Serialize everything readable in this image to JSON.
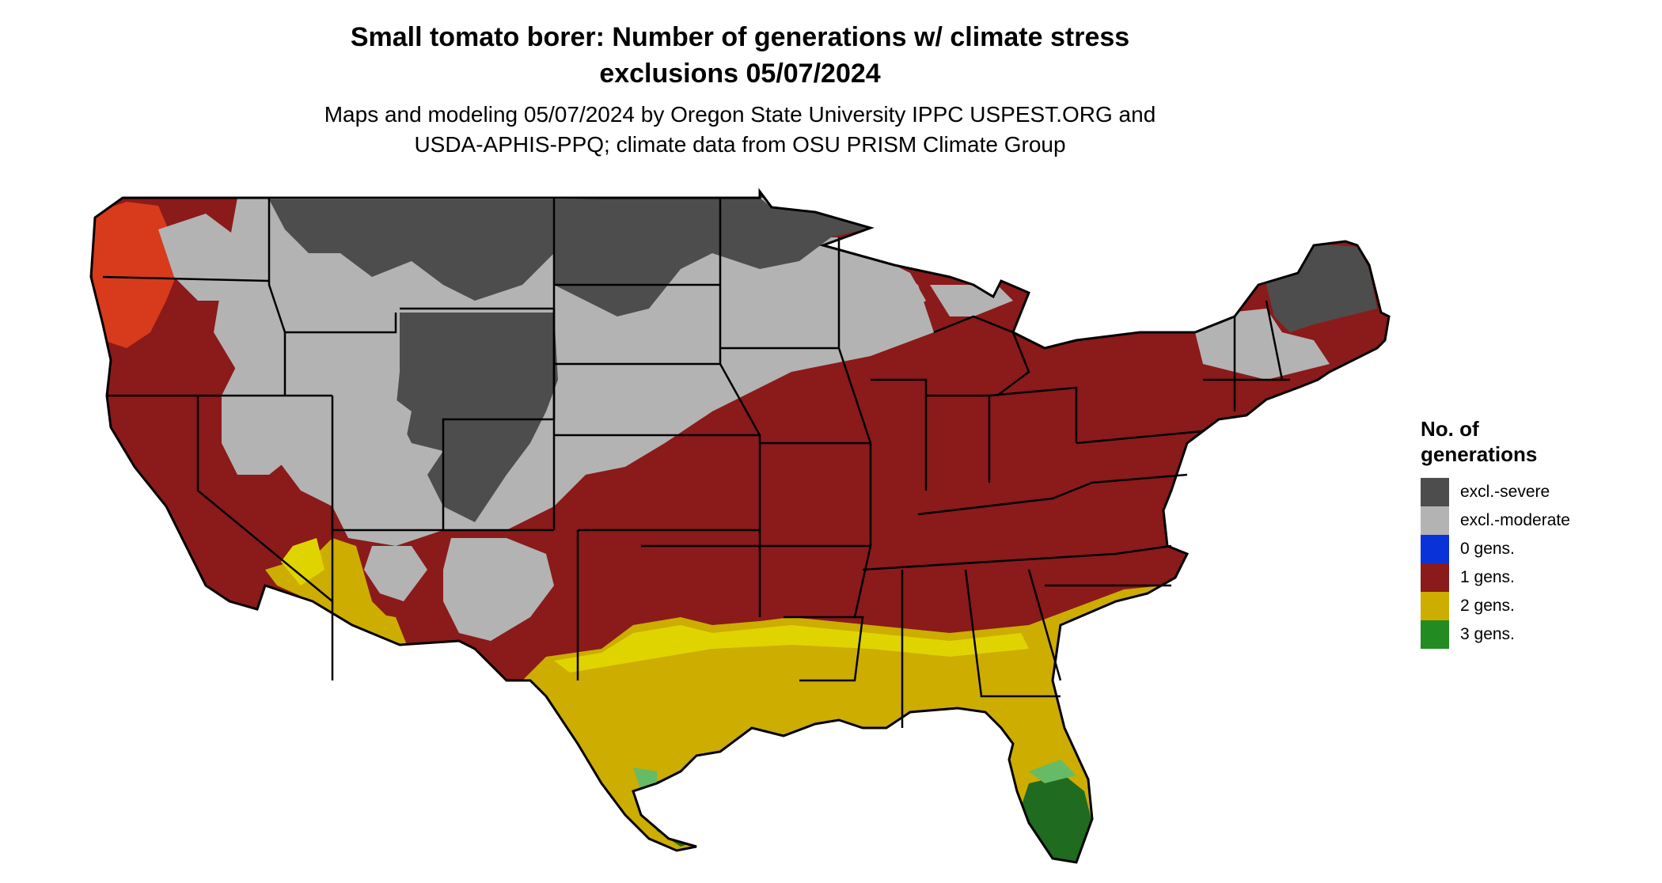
{
  "title_line1": "Small tomato borer: Number of generations w/ climate stress",
  "title_line2": "exclusions 05/07/2024",
  "subtitle_line1": "Maps and modeling 05/07/2024 by Oregon State University IPPC USPEST.ORG and",
  "subtitle_line2": "USDA-APHIS-PPQ; climate data from OSU PRISM Climate Group",
  "legend": {
    "title_line1": "No. of",
    "title_line2": "generations",
    "items": [
      {
        "label": "excl.-severe",
        "color": "#4d4d4d"
      },
      {
        "label": "excl.-moderate",
        "color": "#b3b3b3"
      },
      {
        "label": "0 gens.",
        "color": "#0a32d9"
      },
      {
        "label": "1 gens.",
        "color": "#8b1a1a"
      },
      {
        "label": "2 gens.",
        "color": "#ccad00"
      },
      {
        "label": "3 gens.",
        "color": "#228b22"
      }
    ]
  },
  "colors": {
    "severe": "#4d4d4d",
    "moderate": "#b3b3b3",
    "gen1": "#8b1a1a",
    "gen1_bright": "#d83a1c",
    "gen2": "#ccad00",
    "gen2_bright": "#e0d400",
    "gen3": "#1f6b1f",
    "gen3_light": "#66bb66",
    "border": "#000000"
  }
}
